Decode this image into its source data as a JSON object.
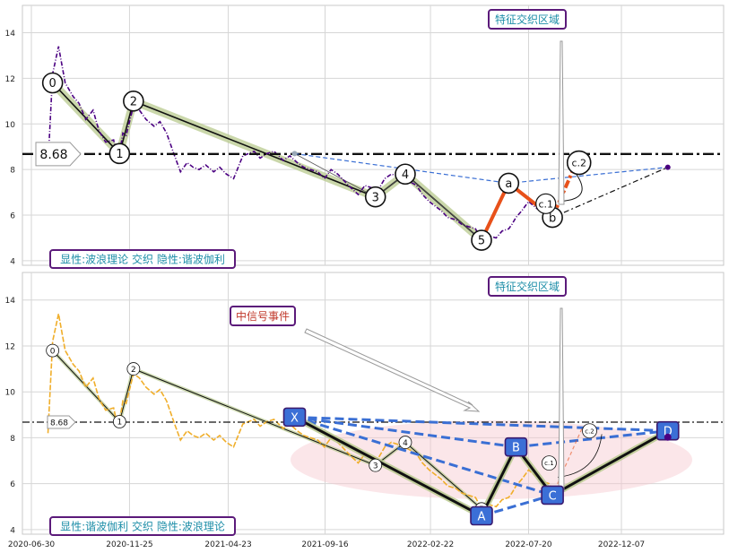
{
  "colors": {
    "top_price": "#4B0082",
    "bottom_price": "#F0AE2A",
    "wave_line": "#111111",
    "wave_band": "#B8C98E",
    "abc_orange": "#E8511A",
    "blue_dash": "#3A6FD4",
    "callout_border": "#5B1A7A",
    "callout_text_teal": "#1E8EA8",
    "callout_text_red": "#C0392B",
    "pattern_node": "#3B6FD6",
    "pink_ellipse": "#F7C7CF"
  },
  "x_ticks": [
    "2020-06-30",
    "2020-11-25",
    "2021-04-23",
    "2021-09-16",
    "2022-02-22",
    "2022-07-20",
    "2022-12-07"
  ],
  "chart_data": [
    {
      "type": "line",
      "panel": "top",
      "ylim": [
        3.8,
        15.2
      ],
      "yticks": [
        4,
        6,
        8,
        10,
        12,
        14
      ],
      "grid": true,
      "series": [
        {
          "style": "dashdot",
          "x": [
            "2020-07-25",
            "2020-08-01",
            "2020-08-10",
            "2020-08-20",
            "2020-09-01",
            "2020-09-10",
            "2020-09-20",
            "2020-10-01",
            "2020-10-10",
            "2020-10-20",
            "2020-11-01",
            "2020-11-05",
            "2020-11-10",
            "2020-11-15",
            "2020-11-20",
            "2020-12-01",
            "2020-12-10",
            "2020-12-20",
            "2021-01-01",
            "2021-01-10",
            "2021-01-20",
            "2021-02-01",
            "2021-02-10",
            "2021-02-20",
            "2021-03-01",
            "2021-03-10",
            "2021-03-20",
            "2021-04-01",
            "2021-04-10",
            "2021-04-20",
            "2021-05-01",
            "2021-05-15",
            "2021-06-01",
            "2021-06-10",
            "2021-06-20",
            "2021-07-01",
            "2021-07-15",
            "2021-07-25",
            "2021-08-05",
            "2021-08-15",
            "2021-08-25",
            "2021-09-05",
            "2021-09-15",
            "2021-09-25",
            "2021-10-05",
            "2021-10-15",
            "2021-10-25",
            "2021-11-05",
            "2021-11-15",
            "2021-11-25",
            "2021-12-05",
            "2021-12-15",
            "2021-12-25",
            "2022-01-05",
            "2022-01-20",
            "2022-02-01",
            "2022-02-10",
            "2022-02-20",
            "2022-03-01",
            "2022-03-10",
            "2022-03-20",
            "2022-04-01",
            "2022-04-10",
            "2022-04-20",
            "2022-05-01",
            "2022-05-10",
            "2022-05-20",
            "2022-06-01",
            "2022-06-10",
            "2022-06-20",
            "2022-06-25",
            "2022-07-01",
            "2022-07-10",
            "2022-07-20",
            "2022-08-01",
            "2022-08-10",
            "2022-08-20",
            "2022-08-25"
          ],
          "values": [
            8.2,
            12.2,
            13.4,
            11.8,
            11.2,
            10.9,
            10.2,
            10.6,
            9.7,
            9.2,
            9.3,
            8.8,
            8.7,
            9.6,
            9.5,
            10.8,
            10.6,
            10.2,
            9.9,
            10.1,
            9.6,
            8.6,
            7.9,
            8.3,
            8.1,
            8.0,
            8.2,
            7.9,
            8.1,
            7.8,
            7.6,
            8.6,
            8.8,
            8.5,
            8.7,
            8.8,
            8.4,
            8.6,
            8.3,
            8.1,
            8.0,
            7.9,
            7.6,
            8.0,
            7.8,
            7.5,
            7.2,
            6.9,
            7.3,
            7.2,
            7.1,
            7.6,
            7.8,
            7.7,
            7.5,
            7.3,
            6.9,
            6.6,
            6.4,
            6.2,
            5.9,
            5.8,
            5.6,
            5.5,
            5.4,
            4.9,
            5.1,
            5.0,
            5.3,
            5.4,
            5.6,
            5.9,
            6.2,
            6.6,
            6.3,
            6.1,
            6.0,
            5.7
          ]
        }
      ],
      "wave_points": [
        {
          "label": "0",
          "x": "2020-08-01",
          "y": 11.8
        },
        {
          "label": "1",
          "x": "2020-11-10",
          "y": 8.7
        },
        {
          "label": "2",
          "x": "2020-12-01",
          "y": 11.0
        },
        {
          "label": "3",
          "x": "2021-12-01",
          "y": 6.8
        },
        {
          "label": "4",
          "x": "2022-01-15",
          "y": 7.8
        },
        {
          "label": "5",
          "x": "2022-05-10",
          "y": 4.9
        }
      ],
      "abc_points": [
        {
          "label": "5",
          "x": "2022-05-10",
          "y": 4.9
        },
        {
          "label": "a",
          "x": "2022-06-20",
          "y": 7.4
        },
        {
          "label": "b",
          "x": "2022-08-25",
          "y": 5.9
        },
        {
          "label": "c.1",
          "x": "2022-08-15",
          "y": 6.5
        },
        {
          "label": "c.2",
          "x": "2022-09-30",
          "y": 8.3
        }
      ],
      "reference_level": {
        "label": "8.68",
        "value": 8.68
      },
      "projection_end": {
        "x": "2023-02-15",
        "y": 8.1
      },
      "callouts": [
        {
          "text": "特征交织区域"
        },
        {
          "text": "显性:波浪理论 交织 隐性:谐波伽利"
        }
      ]
    },
    {
      "type": "line",
      "panel": "bottom",
      "ylim": [
        3.8,
        15.2
      ],
      "yticks": [
        4,
        6,
        8,
        10,
        12,
        14
      ],
      "grid": true,
      "series": [
        {
          "style": "dashed",
          "x": [
            "2020-07-25",
            "2020-08-01",
            "2020-08-10",
            "2020-08-20",
            "2020-09-01",
            "2020-09-10",
            "2020-09-20",
            "2020-10-01",
            "2020-10-10",
            "2020-10-20",
            "2020-11-01",
            "2020-11-05",
            "2020-11-10",
            "2020-11-15",
            "2020-11-20",
            "2020-12-01",
            "2020-12-10",
            "2020-12-20",
            "2021-01-01",
            "2021-01-10",
            "2021-01-20",
            "2021-02-01",
            "2021-02-10",
            "2021-02-20",
            "2021-03-01",
            "2021-03-10",
            "2021-03-20",
            "2021-04-01",
            "2021-04-10",
            "2021-04-20",
            "2021-05-01",
            "2021-05-15",
            "2021-06-01",
            "2021-06-10",
            "2021-06-20",
            "2021-07-01",
            "2021-07-15",
            "2021-07-25",
            "2021-08-05",
            "2021-08-15",
            "2021-08-25",
            "2021-09-05",
            "2021-09-15",
            "2021-09-25",
            "2021-10-05",
            "2021-10-15",
            "2021-10-25",
            "2021-11-05",
            "2021-11-15",
            "2021-11-25",
            "2021-12-05",
            "2021-12-15",
            "2021-12-25",
            "2022-01-05",
            "2022-01-20",
            "2022-02-01",
            "2022-02-10",
            "2022-02-20",
            "2022-03-01",
            "2022-03-10",
            "2022-03-20",
            "2022-04-01",
            "2022-04-10",
            "2022-04-20",
            "2022-05-01",
            "2022-05-10",
            "2022-05-20",
            "2022-06-01",
            "2022-06-10",
            "2022-06-20",
            "2022-06-25",
            "2022-07-01",
            "2022-07-10",
            "2022-07-20",
            "2022-08-01",
            "2022-08-10",
            "2022-08-20",
            "2022-08-25"
          ],
          "values": [
            8.2,
            12.2,
            13.4,
            11.8,
            11.2,
            10.9,
            10.2,
            10.6,
            9.7,
            9.2,
            9.3,
            8.8,
            8.7,
            9.6,
            9.5,
            10.8,
            10.6,
            10.2,
            9.9,
            10.1,
            9.6,
            8.6,
            7.9,
            8.3,
            8.1,
            8.0,
            8.2,
            7.9,
            8.1,
            7.8,
            7.6,
            8.6,
            8.8,
            8.5,
            8.7,
            8.8,
            8.4,
            8.6,
            8.3,
            8.1,
            8.0,
            7.9,
            7.6,
            8.0,
            7.8,
            7.5,
            7.2,
            6.9,
            7.3,
            7.2,
            7.1,
            7.6,
            7.8,
            7.7,
            7.5,
            7.3,
            6.9,
            6.6,
            6.4,
            6.2,
            5.9,
            5.8,
            5.6,
            5.5,
            5.4,
            4.9,
            5.1,
            5.0,
            5.3,
            5.4,
            5.6,
            5.9,
            6.2,
            6.6,
            6.3,
            6.1,
            6.0,
            5.7
          ]
        }
      ],
      "wave_points": [
        {
          "label": "0",
          "x": "2020-08-01",
          "y": 11.8
        },
        {
          "label": "1",
          "x": "2020-11-10",
          "y": 8.7
        },
        {
          "label": "2",
          "x": "2020-12-01",
          "y": 11.0
        },
        {
          "label": "3",
          "x": "2021-12-01",
          "y": 6.8
        },
        {
          "label": "4",
          "x": "2022-01-15",
          "y": 7.8
        },
        {
          "label": "5",
          "x": "2022-05-10",
          "y": 4.9
        }
      ],
      "pattern_points": [
        {
          "label": "X",
          "x": "2021-08-01",
          "y": 8.9
        },
        {
          "label": "A",
          "x": "2022-05-10",
          "y": 4.6
        },
        {
          "label": "B",
          "x": "2022-07-01",
          "y": 7.6
        },
        {
          "label": "C",
          "x": "2022-08-25",
          "y": 5.5
        },
        {
          "label": "D",
          "x": "2023-02-15",
          "y": 8.3
        }
      ],
      "minor_labels": [
        {
          "label": "c.1",
          "x": "2022-08-20",
          "y": 6.9
        },
        {
          "label": "c.2",
          "x": "2022-10-20",
          "y": 8.3
        }
      ],
      "reference_level": {
        "label": "8.68",
        "value": 8.68
      },
      "callouts": [
        {
          "text": "特征交织区域"
        },
        {
          "text": "中信号事件"
        },
        {
          "text": "显性:谐波伽利 交织 隐性:波浪理论"
        }
      ]
    }
  ]
}
